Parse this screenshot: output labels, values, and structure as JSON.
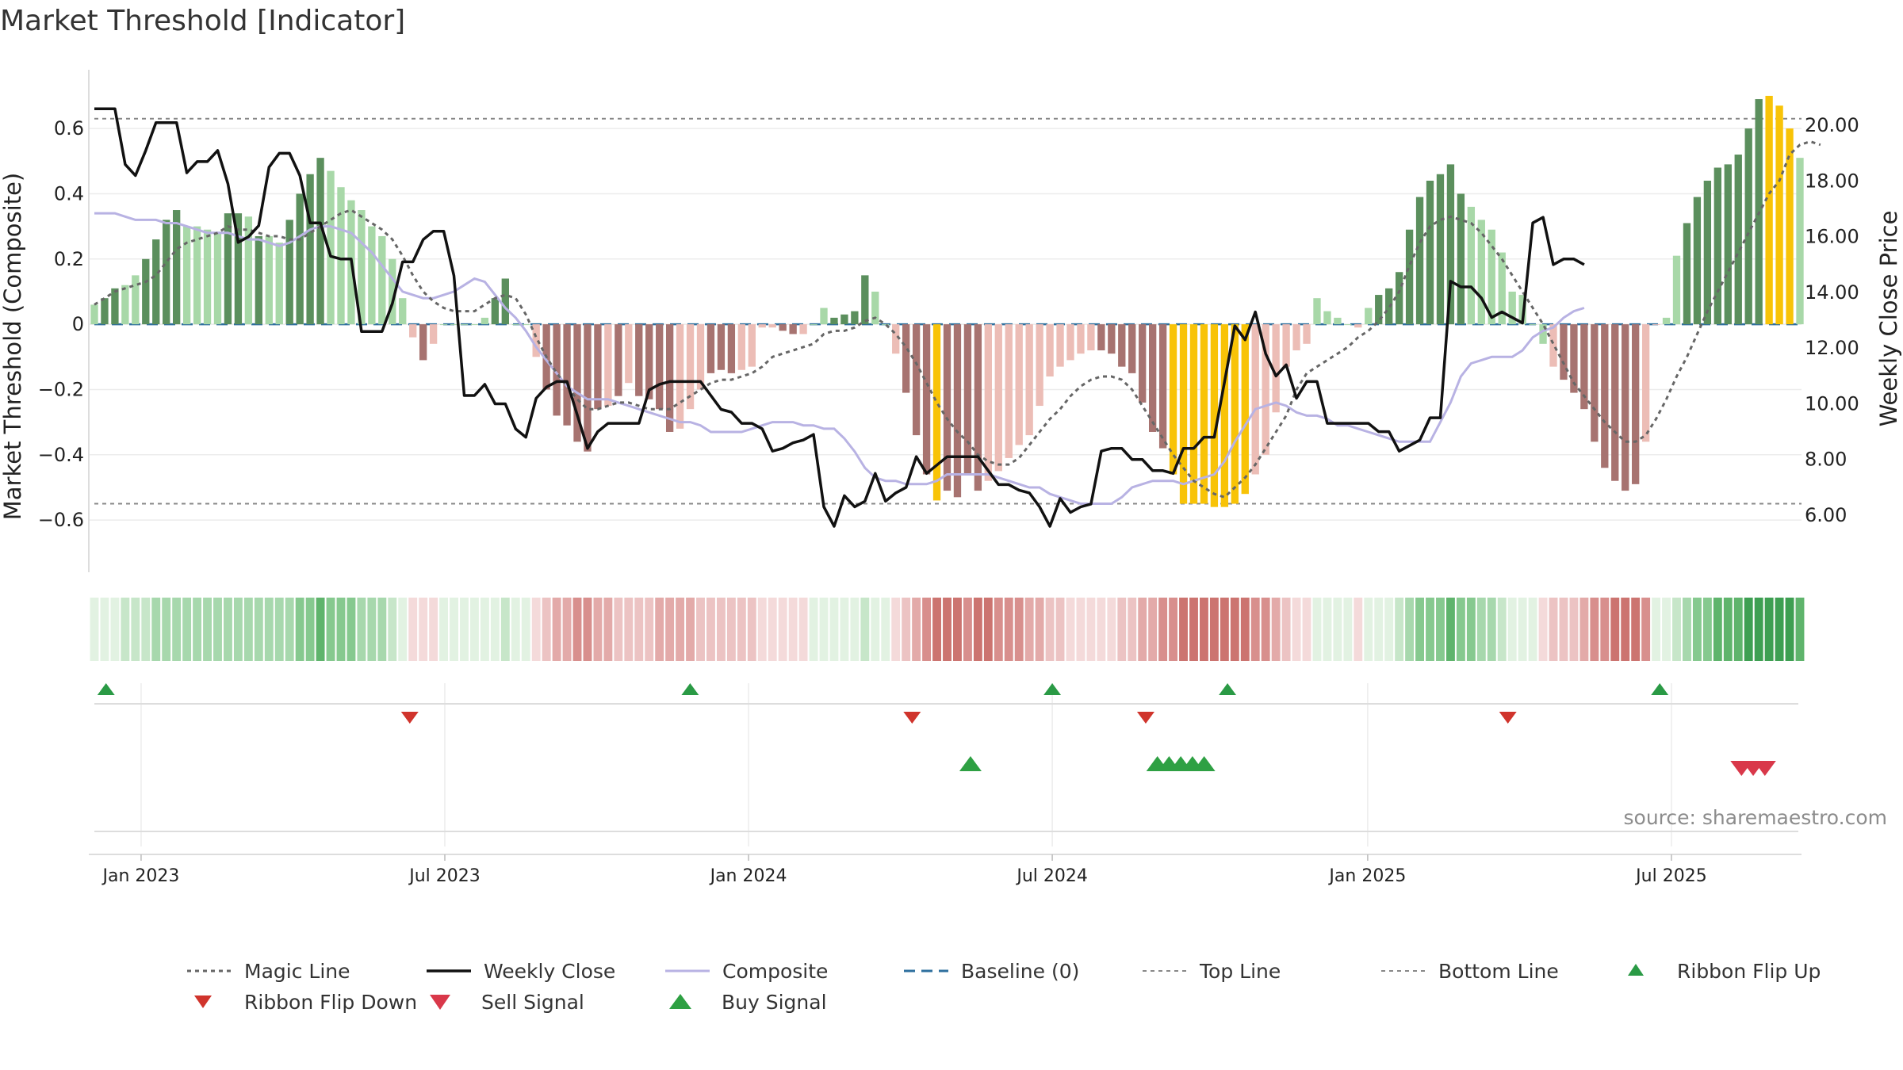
{
  "title": "Market Threshold [Indicator]",
  "source_text": "source: sharemaestro.com",
  "colors": {
    "strong_green": "#5b8f5d",
    "light_green": "#a8d8a8",
    "strong_red": "#a77370",
    "light_red": "#ecbdb6",
    "gold": "#f8c307",
    "magic_line": "#666666",
    "weekly_close": "#111111",
    "composite": "#b8b2e3",
    "baseline": "#2e6f9e",
    "threshold_lines": "#888888",
    "buy_marker": "#2ea043",
    "sell_marker": "#d9384a",
    "flip_up_marker": "#2a9a45",
    "flip_down_marker": "#d0342c"
  },
  "chart_data": {
    "type": "bar",
    "title": "Market Threshold [Indicator]",
    "xlabel": "",
    "ylabel": "Market Threshold (Composite)",
    "y2label": "Weekly Close Price",
    "ylim": [
      -0.76,
      0.78
    ],
    "y2lim": [
      3.95,
      22.0
    ],
    "grid": true,
    "x_range": [
      "2022-12-05",
      "2025-09-22"
    ],
    "x_ticks": [
      {
        "date": "2023-01-02",
        "label": "Jan 2023"
      },
      {
        "date": "2023-07-03",
        "label": "Jul 2023"
      },
      {
        "date": "2024-01-01",
        "label": "Jan 2024"
      },
      {
        "date": "2024-07-01",
        "label": "Jul 2024"
      },
      {
        "date": "2025-01-06",
        "label": "Jan 2025"
      },
      {
        "date": "2025-07-07",
        "label": "Jul 2025"
      }
    ],
    "y_ticks": [
      {
        "v": 0.6,
        "label": "0.6"
      },
      {
        "v": 0.4,
        "label": "0.4"
      },
      {
        "v": 0.2,
        "label": "0.2"
      },
      {
        "v": 0,
        "label": "0"
      },
      {
        "v": -0.2,
        "label": "−0.2"
      },
      {
        "v": -0.4,
        "label": "−0.4"
      },
      {
        "v": -0.6,
        "label": "−0.6"
      }
    ],
    "y2_ticks": [
      {
        "v": 20,
        "label": "20.00"
      },
      {
        "v": 18,
        "label": "18.00"
      },
      {
        "v": 16,
        "label": "16.00"
      },
      {
        "v": 14,
        "label": "14.00"
      },
      {
        "v": 12,
        "label": "12.00"
      },
      {
        "v": 10,
        "label": "10.00"
      },
      {
        "v": 8,
        "label": "8.00"
      },
      {
        "v": 6,
        "label": "6.00"
      }
    ],
    "top_line": 0.63,
    "bottom_line": -0.55,
    "bars": {
      "composite": [
        0.06,
        0.08,
        0.11,
        0.12,
        0.15,
        0.2,
        0.26,
        0.32,
        0.35,
        0.3,
        0.3,
        0.29,
        0.28,
        0.34,
        0.34,
        0.33,
        0.27,
        0.27,
        0.25,
        0.32,
        0.4,
        0.46,
        0.51,
        0.47,
        0.42,
        0.38,
        0.35,
        0.3,
        0.27,
        0.2,
        0.08,
        -0.04,
        -0.11,
        -0.06,
        0.0,
        0.0,
        0.0,
        0.0,
        0.02,
        0.08,
        0.14,
        0.0,
        0.0,
        -0.1,
        -0.2,
        -0.28,
        -0.31,
        -0.36,
        -0.39,
        -0.26,
        -0.25,
        -0.22,
        -0.18,
        -0.22,
        -0.23,
        -0.26,
        -0.33,
        -0.32,
        -0.26,
        -0.2,
        -0.15,
        -0.14,
        -0.15,
        -0.14,
        -0.13,
        -0.01,
        -0.01,
        -0.02,
        -0.03,
        -0.03,
        0.0,
        0.05,
        0.02,
        0.03,
        0.04,
        0.15,
        0.1,
        0.0,
        -0.09,
        -0.21,
        -0.34,
        -0.46,
        -0.54,
        -0.51,
        -0.53,
        -0.46,
        -0.51,
        -0.48,
        -0.45,
        -0.41,
        -0.37,
        -0.34,
        -0.25,
        -0.16,
        -0.13,
        -0.11,
        -0.09,
        -0.08,
        -0.08,
        -0.09,
        -0.13,
        -0.15,
        -0.24,
        -0.33,
        -0.38,
        -0.46,
        -0.55,
        -0.55,
        -0.55,
        -0.56,
        -0.56,
        -0.55,
        -0.52,
        -0.46,
        -0.4,
        -0.27,
        -0.13,
        -0.08,
        -0.06,
        0.08,
        0.04,
        0.02,
        0.0,
        -0.01,
        0.05,
        0.09,
        0.11,
        0.16,
        0.29,
        0.39,
        0.44,
        0.46,
        0.49,
        0.4,
        0.36,
        0.32,
        0.29,
        0.22,
        0.1,
        0.09,
        0.0,
        -0.06,
        -0.13,
        -0.17,
        -0.21,
        -0.26,
        -0.36,
        -0.44,
        -0.48,
        -0.51,
        -0.49,
        -0.36,
        0.0,
        0.02,
        0.21,
        0.31,
        0.39,
        0.44,
        0.48,
        0.49,
        0.52,
        0.6,
        0.69,
        0.7,
        0.67,
        0.6,
        0.51
      ],
      "category": [
        "lg",
        "sg",
        "sg",
        "lg",
        "lg",
        "sg",
        "sg",
        "sg",
        "sg",
        "lg",
        "lg",
        "lg",
        "lg",
        "sg",
        "sg",
        "lg",
        "sg",
        "lg",
        "lg",
        "sg",
        "sg",
        "sg",
        "sg",
        "lg",
        "lg",
        "lg",
        "lg",
        "lg",
        "lg",
        "lg",
        "lg",
        "lr",
        "sr",
        "lr",
        "lg",
        "lg",
        "lg",
        "lg",
        "lg",
        "sg",
        "sg",
        "lg",
        "lg",
        "lr",
        "sr",
        "sr",
        "sr",
        "sr",
        "sr",
        "sr",
        "lr",
        "sr",
        "lr",
        "sr",
        "sr",
        "sr",
        "sr",
        "lr",
        "lr",
        "lr",
        "sr",
        "sr",
        "sr",
        "lr",
        "lr",
        "lr",
        "lr",
        "sr",
        "sr",
        "lr",
        "lg",
        "lg",
        "sg",
        "sg",
        "sg",
        "sg",
        "lg",
        "lg",
        "lr",
        "sr",
        "sr",
        "sr",
        "gd",
        "sr",
        "sr",
        "sr",
        "sr",
        "lr",
        "lr",
        "lr",
        "lr",
        "lr",
        "lr",
        "lr",
        "lr",
        "lr",
        "lr",
        "lr",
        "sr",
        "sr",
        "sr",
        "sr",
        "sr",
        "sr",
        "sr",
        "gd",
        "gd",
        "gd",
        "gd",
        "gd",
        "gd",
        "gd",
        "gd",
        "lr",
        "lr",
        "lr",
        "lr",
        "lr",
        "lr",
        "lg",
        "lg",
        "lg",
        "lg",
        "lr",
        "lg",
        "sg",
        "sg",
        "sg",
        "sg",
        "sg",
        "sg",
        "sg",
        "sg",
        "sg",
        "lg",
        "lg",
        "lg",
        "lg",
        "lg",
        "lg",
        "lg",
        "lg",
        "lr",
        "sr",
        "sr",
        "sr",
        "sr",
        "sr",
        "sr",
        "sr",
        "sr",
        "lr",
        "lr",
        "lg",
        "lg",
        "sg",
        "sg",
        "sg",
        "sg",
        "sg",
        "sg",
        "sg",
        "sg",
        "gd",
        "gd",
        "gd",
        "lg",
        "lg"
      ]
    },
    "series": [
      {
        "name": "Magic Line",
        "axis": "left",
        "values": [
          0.06,
          0.08,
          0.1,
          0.11,
          0.12,
          0.13,
          0.15,
          0.19,
          0.23,
          0.25,
          0.26,
          0.27,
          0.28,
          0.3,
          0.29,
          0.29,
          0.28,
          0.27,
          0.27,
          0.26,
          0.26,
          0.28,
          0.3,
          0.32,
          0.34,
          0.35,
          0.33,
          0.31,
          0.29,
          0.26,
          0.21,
          0.15,
          0.1,
          0.07,
          0.05,
          0.04,
          0.04,
          0.04,
          0.06,
          0.08,
          0.09,
          0.08,
          0.03,
          -0.04,
          -0.1,
          -0.15,
          -0.19,
          -0.23,
          -0.26,
          -0.26,
          -0.25,
          -0.24,
          -0.24,
          -0.25,
          -0.26,
          -0.26,
          -0.26,
          -0.24,
          -0.22,
          -0.2,
          -0.18,
          -0.17,
          -0.17,
          -0.16,
          -0.15,
          -0.13,
          -0.1,
          -0.09,
          -0.08,
          -0.07,
          -0.06,
          -0.03,
          -0.02,
          -0.02,
          -0.01,
          0.01,
          0.02,
          0.0,
          -0.03,
          -0.07,
          -0.12,
          -0.18,
          -0.24,
          -0.29,
          -0.33,
          -0.36,
          -0.4,
          -0.42,
          -0.43,
          -0.43,
          -0.41,
          -0.37,
          -0.33,
          -0.29,
          -0.26,
          -0.22,
          -0.19,
          -0.17,
          -0.16,
          -0.16,
          -0.17,
          -0.2,
          -0.25,
          -0.3,
          -0.35,
          -0.4,
          -0.44,
          -0.48,
          -0.5,
          -0.52,
          -0.53,
          -0.5,
          -0.47,
          -0.43,
          -0.38,
          -0.33,
          -0.28,
          -0.2,
          -0.15,
          -0.13,
          -0.11,
          -0.09,
          -0.07,
          -0.04,
          -0.02,
          0.01,
          0.05,
          0.1,
          0.18,
          0.25,
          0.3,
          0.32,
          0.33,
          0.32,
          0.31,
          0.28,
          0.24,
          0.2,
          0.15,
          0.1,
          0.05,
          0.0,
          -0.06,
          -0.12,
          -0.18,
          -0.22,
          -0.26,
          -0.3,
          -0.33,
          -0.36,
          -0.36,
          -0.34,
          -0.29,
          -0.23,
          -0.16,
          -0.1,
          -0.03,
          0.04,
          0.1,
          0.16,
          0.22,
          0.28,
          0.34,
          0.4,
          0.44,
          0.52,
          0.55,
          0.56,
          0.55
        ]
      },
      {
        "name": "Weekly Close",
        "axis": "right",
        "values": [
          20.6,
          20.6,
          20.6,
          18.6,
          18.2,
          19.1,
          20.1,
          20.1,
          20.1,
          18.3,
          18.7,
          18.7,
          19.1,
          17.9,
          15.8,
          16.0,
          16.4,
          18.5,
          19.0,
          19.0,
          18.2,
          16.5,
          16.5,
          15.3,
          15.2,
          15.2,
          12.6,
          12.6,
          12.6,
          13.6,
          15.1,
          15.1,
          15.9,
          16.2,
          16.2,
          14.6,
          10.3,
          10.3,
          10.7,
          10.0,
          10.0,
          9.1,
          8.8,
          10.2,
          10.6,
          10.8,
          10.8,
          9.6,
          8.4,
          9.0,
          9.3,
          9.3,
          9.3,
          9.3,
          10.5,
          10.7,
          10.8,
          10.8,
          10.8,
          10.8,
          10.3,
          9.8,
          9.7,
          9.3,
          9.3,
          9.1,
          8.3,
          8.4,
          8.6,
          8.7,
          8.9,
          6.3,
          5.6,
          6.7,
          6.3,
          6.5,
          7.5,
          6.5,
          6.8,
          7.0,
          8.1,
          7.5,
          7.8,
          8.1,
          8.1,
          8.1,
          8.1,
          7.6,
          7.1,
          7.1,
          6.9,
          6.8,
          6.3,
          5.6,
          6.6,
          6.1,
          6.3,
          6.4,
          8.3,
          8.4,
          8.4,
          8.0,
          8.0,
          7.6,
          7.6,
          7.5,
          8.4,
          8.4,
          8.8,
          8.8,
          10.8,
          12.8,
          12.3,
          13.3,
          11.8,
          11.0,
          11.4,
          10.2,
          10.8,
          10.8,
          9.3,
          9.3,
          9.3,
          9.3,
          9.3,
          9.0,
          9.0,
          8.3,
          8.5,
          8.7,
          9.5,
          9.5,
          14.4,
          14.2,
          14.2,
          13.8,
          13.1,
          13.3,
          13.1,
          12.9,
          16.5,
          16.7,
          15.0,
          15.2,
          15.2,
          15.0
        ]
      },
      {
        "name": "Composite",
        "axis": "left",
        "values": [
          0.34,
          0.34,
          0.34,
          0.33,
          0.32,
          0.32,
          0.32,
          0.31,
          0.31,
          0.3,
          0.29,
          0.28,
          0.28,
          0.28,
          0.27,
          0.26,
          0.26,
          0.25,
          0.24,
          0.25,
          0.27,
          0.29,
          0.3,
          0.3,
          0.29,
          0.28,
          0.25,
          0.22,
          0.18,
          0.14,
          0.1,
          0.09,
          0.08,
          0.08,
          0.09,
          0.1,
          0.12,
          0.14,
          0.13,
          0.09,
          0.05,
          0.02,
          -0.02,
          -0.07,
          -0.11,
          -0.15,
          -0.19,
          -0.21,
          -0.23,
          -0.23,
          -0.23,
          -0.24,
          -0.25,
          -0.26,
          -0.27,
          -0.28,
          -0.29,
          -0.3,
          -0.3,
          -0.31,
          -0.33,
          -0.33,
          -0.33,
          -0.33,
          -0.32,
          -0.31,
          -0.3,
          -0.3,
          -0.3,
          -0.31,
          -0.31,
          -0.32,
          -0.32,
          -0.35,
          -0.39,
          -0.44,
          -0.47,
          -0.48,
          -0.48,
          -0.49,
          -0.49,
          -0.49,
          -0.48,
          -0.46,
          -0.46,
          -0.46,
          -0.46,
          -0.46,
          -0.47,
          -0.48,
          -0.49,
          -0.5,
          -0.5,
          -0.52,
          -0.53,
          -0.54,
          -0.55,
          -0.55,
          -0.55,
          -0.55,
          -0.53,
          -0.5,
          -0.49,
          -0.48,
          -0.48,
          -0.48,
          -0.49,
          -0.48,
          -0.47,
          -0.46,
          -0.42,
          -0.36,
          -0.31,
          -0.26,
          -0.25,
          -0.24,
          -0.25,
          -0.27,
          -0.28,
          -0.28,
          -0.29,
          -0.31,
          -0.31,
          -0.32,
          -0.33,
          -0.34,
          -0.35,
          -0.36,
          -0.36,
          -0.36,
          -0.36,
          -0.3,
          -0.24,
          -0.16,
          -0.12,
          -0.11,
          -0.1,
          -0.1,
          -0.1,
          -0.08,
          -0.04,
          -0.02,
          -0.01,
          0.02,
          0.04,
          0.05
        ]
      },
      {
        "name": "Baseline (0)",
        "axis": "left",
        "value": 0
      },
      {
        "name": "Top Line",
        "axis": "left",
        "value": 0.63
      },
      {
        "name": "Bottom Line",
        "axis": "left",
        "value": -0.55
      }
    ],
    "markers": {
      "flip_up": [
        "2022-12-12",
        "2023-11-27",
        "2024-07-01",
        "2024-10-14",
        "2025-06-30"
      ],
      "flip_down": [
        "2023-06-12",
        "2024-04-08",
        "2024-08-26",
        "2025-03-31"
      ],
      "buy": [
        "2024-05-13",
        "2024-09-02",
        "2024-09-09",
        "2024-09-16",
        "2024-09-23",
        "2024-09-30"
      ],
      "sell": [
        "2025-08-18",
        "2025-08-25",
        "2025-09-01"
      ]
    },
    "legend": {
      "placement": "bottom",
      "items": [
        "Magic Line",
        "Weekly Close",
        "Composite",
        "Baseline (0)",
        "Top Line",
        "Bottom Line",
        "Ribbon Flip Up",
        "Ribbon Flip Down",
        "Sell Signal",
        "Buy Signal"
      ]
    }
  }
}
